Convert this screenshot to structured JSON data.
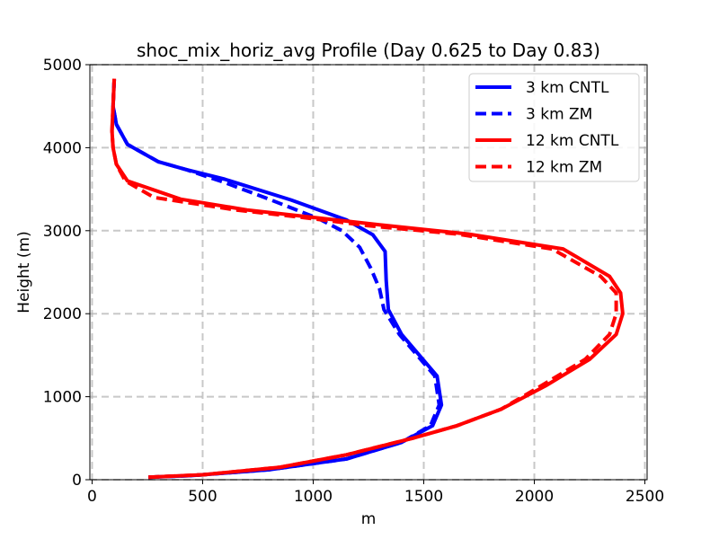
{
  "chart_data": {
    "type": "line",
    "title": "shoc_mix_horiz_avg Profile (Day 0.625 to Day 0.83)",
    "xlabel": "m",
    "ylabel": "Height (m)",
    "xlim": [
      -10,
      2510
    ],
    "ylim": [
      0,
      5000
    ],
    "xticks": [
      0,
      500,
      1000,
      1500,
      2000,
      2500
    ],
    "yticks": [
      0,
      1000,
      2000,
      3000,
      4000,
      5000
    ],
    "xtick_labels": [
      "0",
      "500",
      "1000",
      "1500",
      "2000",
      "2500"
    ],
    "ytick_labels": [
      "0",
      "1000",
      "2000",
      "3000",
      "4000",
      "5000"
    ],
    "grid": true,
    "legend_position": "top-right",
    "series": [
      {
        "name": "3 km CNTL",
        "color": "#0000ff",
        "dash": "solid",
        "points": [
          [
            255,
            30
          ],
          [
            450,
            50
          ],
          [
            800,
            120
          ],
          [
            1150,
            250
          ],
          [
            1400,
            450
          ],
          [
            1540,
            650
          ],
          [
            1580,
            900
          ],
          [
            1560,
            1250
          ],
          [
            1480,
            1500
          ],
          [
            1400,
            1750
          ],
          [
            1340,
            2050
          ],
          [
            1330,
            2400
          ],
          [
            1325,
            2750
          ],
          [
            1270,
            2950
          ],
          [
            1150,
            3130
          ],
          [
            900,
            3370
          ],
          [
            600,
            3620
          ],
          [
            420,
            3740
          ],
          [
            300,
            3830
          ],
          [
            160,
            4040
          ],
          [
            110,
            4280
          ],
          [
            95,
            4500
          ],
          [
            100,
            4820
          ]
        ]
      },
      {
        "name": "3 km ZM",
        "color": "#0000ff",
        "dash": "dashed",
        "points": [
          [
            255,
            30
          ],
          [
            450,
            50
          ],
          [
            800,
            120
          ],
          [
            1150,
            250
          ],
          [
            1400,
            450
          ],
          [
            1530,
            650
          ],
          [
            1570,
            900
          ],
          [
            1550,
            1250
          ],
          [
            1470,
            1500
          ],
          [
            1390,
            1750
          ],
          [
            1320,
            2050
          ],
          [
            1300,
            2300
          ],
          [
            1260,
            2550
          ],
          [
            1210,
            2800
          ],
          [
            1130,
            3000
          ],
          [
            1020,
            3150
          ],
          [
            800,
            3380
          ],
          [
            600,
            3580
          ],
          [
            420,
            3740
          ],
          [
            300,
            3830
          ],
          [
            160,
            4040
          ],
          [
            110,
            4280
          ],
          [
            95,
            4500
          ],
          [
            100,
            4820
          ]
        ]
      },
      {
        "name": "12 km CNTL",
        "color": "#ff0000",
        "dash": "solid",
        "points": [
          [
            255,
            30
          ],
          [
            500,
            60
          ],
          [
            850,
            150
          ],
          [
            1150,
            300
          ],
          [
            1450,
            500
          ],
          [
            1650,
            650
          ],
          [
            1850,
            850
          ],
          [
            2050,
            1130
          ],
          [
            2250,
            1450
          ],
          [
            2370,
            1750
          ],
          [
            2400,
            2000
          ],
          [
            2390,
            2250
          ],
          [
            2340,
            2450
          ],
          [
            2130,
            2780
          ],
          [
            1700,
            2960
          ],
          [
            1300,
            3070
          ],
          [
            1000,
            3160
          ],
          [
            700,
            3250
          ],
          [
            400,
            3380
          ],
          [
            160,
            3600
          ],
          [
            110,
            3800
          ],
          [
            95,
            4000
          ],
          [
            90,
            4200
          ],
          [
            95,
            4500
          ],
          [
            100,
            4830
          ]
        ]
      },
      {
        "name": "12 km ZM",
        "color": "#ff0000",
        "dash": "dashed",
        "points": [
          [
            255,
            30
          ],
          [
            500,
            60
          ],
          [
            850,
            150
          ],
          [
            1150,
            300
          ],
          [
            1450,
            500
          ],
          [
            1650,
            650
          ],
          [
            1850,
            850
          ],
          [
            2030,
            1130
          ],
          [
            2230,
            1450
          ],
          [
            2340,
            1750
          ],
          [
            2370,
            2000
          ],
          [
            2370,
            2250
          ],
          [
            2300,
            2450
          ],
          [
            2080,
            2780
          ],
          [
            1650,
            2960
          ],
          [
            1250,
            3060
          ],
          [
            950,
            3160
          ],
          [
            650,
            3250
          ],
          [
            280,
            3400
          ],
          [
            150,
            3600
          ],
          [
            110,
            3800
          ],
          [
            95,
            4000
          ],
          [
            90,
            4200
          ],
          [
            95,
            4500
          ],
          [
            100,
            4830
          ]
        ]
      }
    ]
  }
}
